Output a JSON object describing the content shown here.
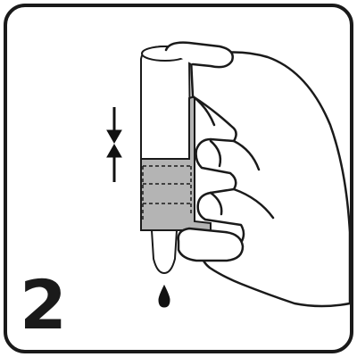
{
  "step": {
    "number": "2"
  },
  "colors": {
    "stroke": "#1a1a1a",
    "label_fill": "#b4b4b4",
    "background": "#ffffff",
    "drop": "#111111"
  },
  "icons": {
    "press_arrows": "compress-arrows-icon",
    "drop": "droplet-icon"
  }
}
